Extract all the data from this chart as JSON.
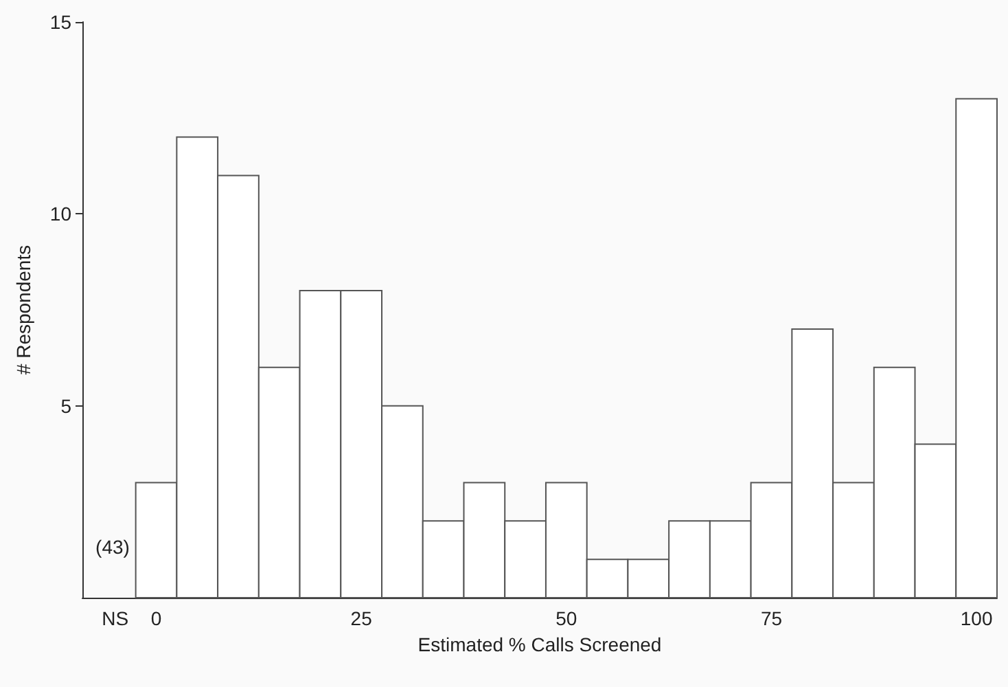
{
  "chart_data": {
    "type": "histogram",
    "xlabel": "Estimated % Calls Screened",
    "ylabel": "# Respondents",
    "bins": [
      -2.5,
      2.5,
      7.5,
      12.5,
      17.5,
      22.5,
      27.5,
      32.5,
      37.5,
      42.5,
      47.5,
      52.5,
      57.5,
      62.5,
      67.5,
      72.5,
      77.5,
      82.5,
      87.5,
      92.5,
      97.5,
      102.5
    ],
    "values": [
      3,
      12,
      11,
      6,
      8,
      8,
      5,
      2,
      3,
      2,
      3,
      1,
      1,
      2,
      2,
      3,
      7,
      3,
      6,
      4,
      13
    ],
    "color": "#ffffff",
    "xlim": [
      -9,
      102.5
    ],
    "xticks": [
      {
        "value": -5,
        "label": "NS"
      },
      0,
      25,
      50,
      75,
      100
    ],
    "ylim": [
      0,
      15
    ],
    "yticks": [
      5,
      10,
      15
    ],
    "annotations": [
      "(43)"
    ],
    "grid": false
  }
}
